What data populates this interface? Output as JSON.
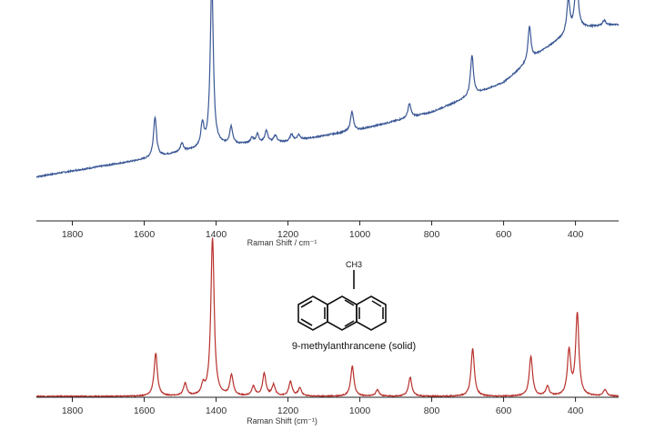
{
  "chart_data": [
    {
      "type": "line",
      "title": "",
      "xlabel": "Raman Shift / cm⁻¹",
      "ylabel": "",
      "xlim": [
        1900,
        280
      ],
      "x_reversed": true,
      "xticks": [
        1800,
        1600,
        1400,
        1200,
        1000,
        800,
        600,
        400
      ],
      "grid": false,
      "series": [
        {
          "color": "#3a5795",
          "baseline": [
            [
              1900,
              0.06
            ],
            [
              1600,
              0.16
            ],
            [
              1400,
              0.24
            ],
            [
              1200,
              0.26
            ],
            [
              1000,
              0.33
            ],
            [
              800,
              0.43
            ],
            [
              600,
              0.6
            ],
            [
              500,
              0.77
            ],
            [
              400,
              0.91
            ],
            [
              300,
              0.93
            ]
          ],
          "peaks": [
            {
              "x": 1570,
              "h": 0.23
            },
            {
              "x": 1495,
              "h": 0.05
            },
            {
              "x": 1438,
              "h": 0.13
            },
            {
              "x": 1412,
              "h": 0.95
            },
            {
              "x": 1358,
              "h": 0.1
            },
            {
              "x": 1300,
              "h": 0.03
            },
            {
              "x": 1285,
              "h": 0.05
            },
            {
              "x": 1260,
              "h": 0.07
            },
            {
              "x": 1235,
              "h": 0.04
            },
            {
              "x": 1190,
              "h": 0.04
            },
            {
              "x": 1170,
              "h": 0.03
            },
            {
              "x": 1022,
              "h": 0.11
            },
            {
              "x": 862,
              "h": 0.08
            },
            {
              "x": 688,
              "h": 0.23
            },
            {
              "x": 528,
              "h": 0.2
            },
            {
              "x": 420,
              "h": 0.19
            },
            {
              "x": 397,
              "h": 0.32
            },
            {
              "x": 320,
              "h": 0.03
            }
          ]
        }
      ]
    },
    {
      "type": "line",
      "title": "",
      "xlabel": "Raman Shift (cm⁻¹)",
      "ylabel": "",
      "xlim": [
        1900,
        280
      ],
      "x_reversed": true,
      "xticks": [
        1800,
        1600,
        1400,
        1200,
        1000,
        800,
        600,
        400
      ],
      "grid": false,
      "annotation": {
        "label": "9-methylanthrancene (solid)",
        "substituent": "CH3"
      },
      "series": [
        {
          "color": "#b8312c",
          "baseline": [
            [
              1900,
              0.0
            ],
            [
              280,
              0.0
            ]
          ],
          "peaks": [
            {
              "x": 1568,
              "h": 0.27
            },
            {
              "x": 1486,
              "h": 0.08
            },
            {
              "x": 1436,
              "h": 0.06
            },
            {
              "x": 1410,
              "h": 1.0
            },
            {
              "x": 1357,
              "h": 0.13
            },
            {
              "x": 1296,
              "h": 0.06
            },
            {
              "x": 1266,
              "h": 0.14
            },
            {
              "x": 1240,
              "h": 0.07
            },
            {
              "x": 1193,
              "h": 0.09
            },
            {
              "x": 1167,
              "h": 0.05
            },
            {
              "x": 1021,
              "h": 0.19
            },
            {
              "x": 951,
              "h": 0.04
            },
            {
              "x": 860,
              "h": 0.12
            },
            {
              "x": 686,
              "h": 0.3
            },
            {
              "x": 524,
              "h": 0.25
            },
            {
              "x": 478,
              "h": 0.06
            },
            {
              "x": 418,
              "h": 0.28
            },
            {
              "x": 395,
              "h": 0.52
            },
            {
              "x": 318,
              "h": 0.04
            }
          ]
        }
      ]
    }
  ]
}
